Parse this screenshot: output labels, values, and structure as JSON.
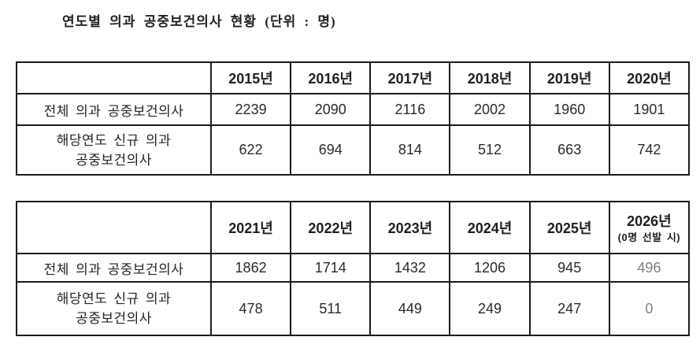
{
  "title": "연도별 의과 공중보건의사 현황 (단위 : 명)",
  "colors": {
    "text": "#1f1f1f",
    "border": "#1b1b1b",
    "muted_value": "#7f7f7f",
    "background": "#ffffff"
  },
  "table1": {
    "columns": [
      "2015년",
      "2016년",
      "2017년",
      "2018년",
      "2019년",
      "2020년"
    ],
    "rows": [
      {
        "label": "전체 의과 공중보건의사",
        "values": [
          "2239",
          "2090",
          "2116",
          "2002",
          "1960",
          "1901"
        ]
      },
      {
        "label_lines": [
          "해당연도 신규 의과",
          "공중보건의사"
        ],
        "values": [
          "622",
          "694",
          "814",
          "512",
          "663",
          "742"
        ]
      }
    ]
  },
  "table2": {
    "columns": [
      "2021년",
      "2022년",
      "2023년",
      "2024년",
      "2025년"
    ],
    "last_column": {
      "line1": "2026년",
      "line2": "(0명 선발 시)"
    },
    "rows": [
      {
        "label": "전체 의과 공중보건의사",
        "values": [
          "1862",
          "1714",
          "1432",
          "1206",
          "945",
          "496"
        ]
      },
      {
        "label_lines": [
          "해당연도 신규 의과",
          "공중보건의사"
        ],
        "values": [
          "478",
          "511",
          "449",
          "249",
          "247",
          "0"
        ]
      }
    ]
  }
}
